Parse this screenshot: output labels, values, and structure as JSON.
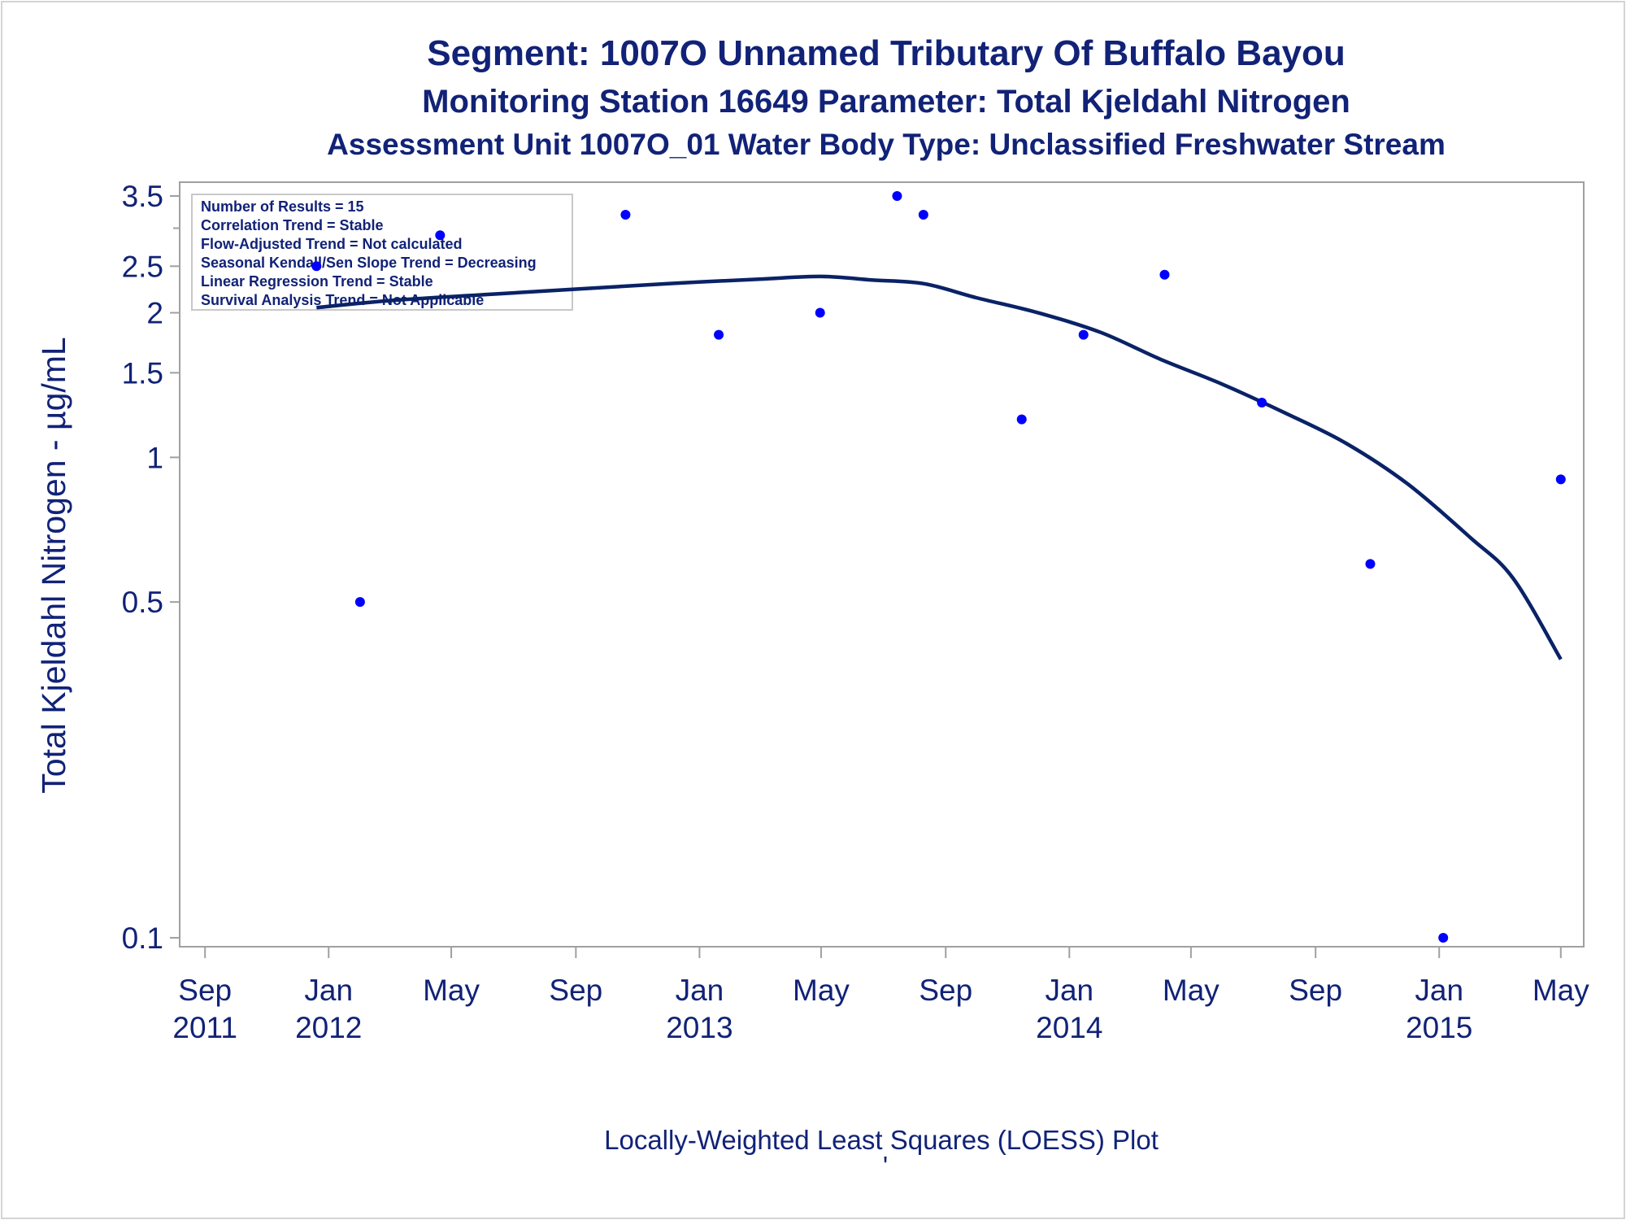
{
  "chart_data": {
    "type": "scatter",
    "title": "Segment: 1007O  Unnamed Tributary Of Buffalo Bayou",
    "subtitle": "Monitoring Station 16649 Parameter: Total Kjeldahl Nitrogen",
    "subtitle2": "Assessment Unit 1007O_01   Water Body Type: Unclassified Freshwater Stream",
    "ylabel": "Total Kjeldahl Nitrogen -  µg/mL",
    "xlabel": "",
    "footnote": "Locally-Weighted Least Squares (LOESS) Plot",
    "footnote_mark": "'",
    "y_scale": "log",
    "ylim": [
      0.1,
      3.5
    ],
    "xlim": [
      "2011-08-15",
      "2015-05-10"
    ],
    "grid": false,
    "legend": "none",
    "y_ticks": [
      {
        "value": 0.1,
        "label": "0.1"
      },
      {
        "value": 0.5,
        "label": "0.5"
      },
      {
        "value": 1,
        "label": "1"
      },
      {
        "value": 1.5,
        "label": "1.5"
      },
      {
        "value": 2,
        "label": "2"
      },
      {
        "value": 2.5,
        "label": "2.5"
      },
      {
        "value": 3.5,
        "label": "3.5"
      }
    ],
    "y_minor_ticks": [
      3
    ],
    "x_ticks": [
      {
        "date": "2011-09-01",
        "month": "Sep",
        "year": "2011"
      },
      {
        "date": "2012-01-01",
        "month": "Jan",
        "year": "2012"
      },
      {
        "date": "2012-05-01",
        "month": "May",
        "year": ""
      },
      {
        "date": "2012-09-01",
        "month": "Sep",
        "year": ""
      },
      {
        "date": "2013-01-01",
        "month": "Jan",
        "year": "2013"
      },
      {
        "date": "2013-05-01",
        "month": "May",
        "year": ""
      },
      {
        "date": "2013-09-01",
        "month": "Sep",
        "year": ""
      },
      {
        "date": "2014-01-01",
        "month": "Jan",
        "year": "2014"
      },
      {
        "date": "2014-05-01",
        "month": "May",
        "year": ""
      },
      {
        "date": "2014-09-01",
        "month": "Sep",
        "year": ""
      },
      {
        "date": "2015-01-01",
        "month": "Jan",
        "year": "2015"
      },
      {
        "date": "2015-05-01",
        "month": "May",
        "year": ""
      }
    ],
    "series": [
      {
        "type": "scatter",
        "color": "#0000ff",
        "points": [
          {
            "x": "2011-12-20",
            "y": 2.5
          },
          {
            "x": "2012-02-01",
            "y": 0.5
          },
          {
            "x": "2012-04-20",
            "y": 2.9
          },
          {
            "x": "2012-10-20",
            "y": 3.2
          },
          {
            "x": "2013-01-20",
            "y": 1.8
          },
          {
            "x": "2013-04-30",
            "y": 2.0
          },
          {
            "x": "2013-07-15",
            "y": 3.5
          },
          {
            "x": "2013-08-10",
            "y": 3.2
          },
          {
            "x": "2013-11-15",
            "y": 1.2
          },
          {
            "x": "2014-01-15",
            "y": 1.8
          },
          {
            "x": "2014-04-05",
            "y": 2.4
          },
          {
            "x": "2014-07-10",
            "y": 1.3
          },
          {
            "x": "2014-10-25",
            "y": 0.6
          },
          {
            "x": "2015-01-05",
            "y": 0.1
          },
          {
            "x": "2015-05-01",
            "y": 0.9
          }
        ]
      },
      {
        "type": "line",
        "color": "#0a2266",
        "points": [
          {
            "x": "2011-12-20",
            "y": 2.05
          },
          {
            "x": "2012-03-01",
            "y": 2.12
          },
          {
            "x": "2012-06-01",
            "y": 2.18
          },
          {
            "x": "2012-09-01",
            "y": 2.24
          },
          {
            "x": "2012-12-01",
            "y": 2.3
          },
          {
            "x": "2013-03-01",
            "y": 2.35
          },
          {
            "x": "2013-05-01",
            "y": 2.38
          },
          {
            "x": "2013-06-20",
            "y": 2.34
          },
          {
            "x": "2013-08-10",
            "y": 2.3
          },
          {
            "x": "2013-10-01",
            "y": 2.15
          },
          {
            "x": "2013-12-01",
            "y": 2.0
          },
          {
            "x": "2014-02-01",
            "y": 1.82
          },
          {
            "x": "2014-04-01",
            "y": 1.6
          },
          {
            "x": "2014-06-01",
            "y": 1.42
          },
          {
            "x": "2014-08-01",
            "y": 1.24
          },
          {
            "x": "2014-10-01",
            "y": 1.07
          },
          {
            "x": "2014-12-01",
            "y": 0.88
          },
          {
            "x": "2015-02-01",
            "y": 0.68
          },
          {
            "x": "2015-03-15",
            "y": 0.56
          },
          {
            "x": "2015-05-01",
            "y": 0.38
          }
        ]
      }
    ],
    "annotations": [
      "Number of Results = 15",
      "Correlation Trend = Stable",
      "Flow-Adjusted Trend = Not calculated",
      "Seasonal Kendall/Sen Slope Trend = Decreasing",
      "Linear Regression Trend = Stable",
      "Survival Analysis Trend = Not Applicable"
    ]
  }
}
